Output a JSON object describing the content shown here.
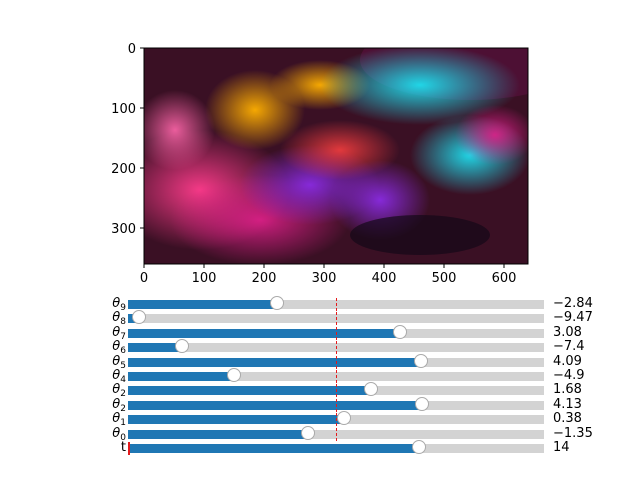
{
  "axes": {
    "x_ticks": [
      "0",
      "100",
      "200",
      "300",
      "400",
      "500",
      "600"
    ],
    "y_ticks": [
      "0",
      "100",
      "200",
      "300"
    ],
    "image_width": 640,
    "image_height": 360
  },
  "image": {
    "description_icon": "abstract-colorful-smoke-image"
  },
  "sliders": [
    {
      "symbol": "θ",
      "sub": "9",
      "value_text": "−2.84",
      "fraction": 0.358,
      "valinit_fraction": 0.5
    },
    {
      "symbol": "θ",
      "sub": "8",
      "value_text": "−9.47",
      "fraction": 0.026,
      "valinit_fraction": 0.5
    },
    {
      "symbol": "θ",
      "sub": "7",
      "value_text": "3.08",
      "fraction": 0.654,
      "valinit_fraction": 0.5
    },
    {
      "symbol": "θ",
      "sub": "6",
      "value_text": "−7.4",
      "fraction": 0.13,
      "valinit_fraction": 0.5
    },
    {
      "symbol": "θ",
      "sub": "5",
      "value_text": "4.09",
      "fraction": 0.705,
      "valinit_fraction": 0.5
    },
    {
      "symbol": "θ",
      "sub": "4",
      "value_text": "−4.9",
      "fraction": 0.255,
      "valinit_fraction": 0.5
    },
    {
      "symbol": "θ",
      "sub": "2",
      "value_text": "1.68",
      "fraction": 0.584,
      "valinit_fraction": 0.5
    },
    {
      "symbol": "θ",
      "sub": "2",
      "value_text": "4.13",
      "fraction": 0.707,
      "valinit_fraction": 0.5
    },
    {
      "symbol": "θ",
      "sub": "1",
      "value_text": "0.38",
      "fraction": 0.519,
      "valinit_fraction": 0.5
    },
    {
      "symbol": "θ",
      "sub": "0",
      "value_text": "−1.35",
      "fraction": 0.433,
      "valinit_fraction": 0.5
    },
    {
      "symbol": "t",
      "sub": "",
      "value_text": "14",
      "fraction": 0.7,
      "valinit_fraction": 0.0
    }
  ],
  "colors": {
    "fill": "#1f77b4",
    "track": "#d3d3d3",
    "valinit": "#e41a1c"
  }
}
